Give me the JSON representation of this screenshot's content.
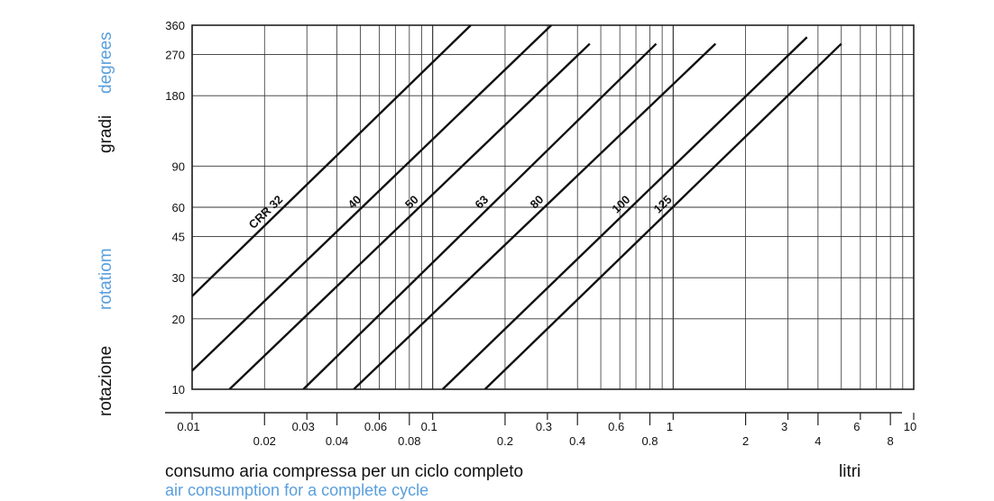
{
  "chart_data": {
    "type": "line",
    "x_scale": "log",
    "y_scale": "log",
    "xlim": [
      0.01,
      10
    ],
    "ylim": [
      10,
      360
    ],
    "grid": true,
    "y_ticks": [
      10,
      20,
      30,
      45,
      60,
      90,
      180,
      270,
      360
    ],
    "x_ticks_upper": [
      "0.01",
      "0.03",
      "0.06",
      "0.1",
      "0.3",
      "0.6",
      "1",
      "3",
      "6",
      "10"
    ],
    "x_ticks_lower": [
      "0.02",
      "0.04",
      "0.08",
      "0.2",
      "0.4",
      "0.8",
      "2",
      "4",
      "8"
    ],
    "ylabel_primary": "rotazione",
    "ylabel_primary_alt": "rotatiom",
    "ylabel_secondary": "gradi",
    "ylabel_secondary_alt": "degrees",
    "xlabel_primary": "consumo aria compressa per un ciclo completo",
    "xlabel_secondary": "air consumption for a complete cycle",
    "xunit": "litri",
    "series": [
      {
        "name": "CRR 32",
        "x": [
          0.01,
          0.144
        ],
        "y": [
          25,
          360
        ]
      },
      {
        "name": "40",
        "x": [
          0.01,
          0.32
        ],
        "y": [
          12,
          370
        ]
      },
      {
        "name": "50",
        "x": [
          0.0143,
          0.45
        ],
        "y": [
          10,
          300
        ]
      },
      {
        "name": "63",
        "x": [
          0.029,
          0.85
        ],
        "y": [
          10,
          300
        ]
      },
      {
        "name": "80",
        "x": [
          0.047,
          1.5
        ],
        "y": [
          10,
          300
        ]
      },
      {
        "name": "100",
        "x": [
          0.11,
          3.6
        ],
        "y": [
          10,
          320
        ]
      },
      {
        "name": "125",
        "x": [
          0.165,
          5.0
        ],
        "y": [
          10,
          300
        ]
      }
    ]
  }
}
